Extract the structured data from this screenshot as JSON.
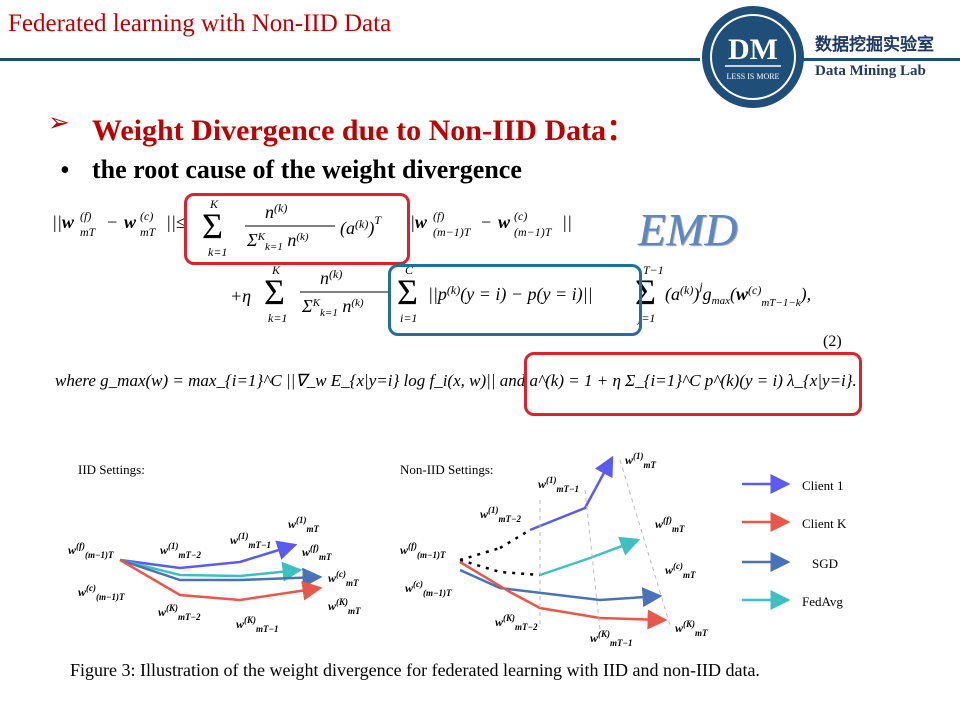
{
  "slide": {
    "title": "Federated learning with Non-IID Data",
    "heading": "Weight Divergence due to Non-IID Data：",
    "heading_marker": "➢",
    "bullet_marker": "•",
    "bullet_text": "the root cause of the weight divergence",
    "emd_label": "EMD",
    "equation_number": "(2)",
    "where_text": "where g_max(w) = max_{i=1}^C ||∇_w E_{x|y=i} log f_i(x, w)|| and a^(k) = 1 + η Σ_{i=1}^C p^(k)(y = i) λ_{x|y=i}.",
    "caption": "Figure 3: Illustration of the weight divergence for federated learning with IID and non-IID data."
  },
  "logo": {
    "initials": "DM",
    "tagline": "LESS IS MORE",
    "name_cn": "数据挖掘实验室",
    "name_en": "Data Mining Lab",
    "color": "#1f4e79"
  },
  "equation": {
    "line1": "||w_mT^(f) − w_mT^(c)|| ≤ Σ_{k=1}^K n^(k)/Σ_{k=1}^K n^(k) (a^(k))^T ||w_(m−1)T^(f) − w_(m−1)T^(c)||",
    "line2": "+ η Σ_{k=1}^K n^(k)/Σ_{k=1}^K n^(k) Σ_{i=1}^C ||p^(k)(y = i) − p(y = i)|| Σ_{j=1}^{T−1} (a^(k))^j g_max(w_{mT−1−k}^(c)),"
  },
  "figure": {
    "iid_title": "IID Settings:",
    "noniid_title": "Non-IID Settings:",
    "legend": [
      {
        "label": "Client 1",
        "color": "#5b5bf0"
      },
      {
        "label": "Client K",
        "color": "#e8584a"
      },
      {
        "label": "SGD",
        "color": "#4a72b8"
      },
      {
        "label": "FedAvg",
        "color": "#3fc0c0"
      }
    ]
  },
  "colors": {
    "accent_red": "#c00000",
    "box_red": "#e0202a",
    "box_blue": "#1f6fa0",
    "emd_blue": "#5b87c5"
  }
}
